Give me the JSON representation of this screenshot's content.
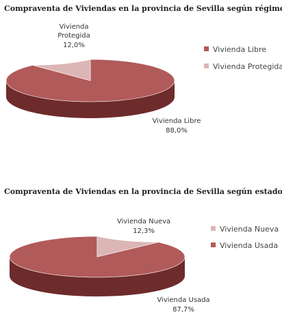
{
  "colors": {
    "primary_top": "#b15a5a",
    "primary_side": "#6e2b2b",
    "secondary_top": "#dcb5b5",
    "secondary_side": "#b08484"
  },
  "chart_data": [
    {
      "type": "pie",
      "title": "Compraventa de Viviendas en la provincia de Sevilla según régimen",
      "legend_position": "right",
      "series": [
        {
          "name": "Vivienda Libre",
          "value": 88.0,
          "label": "88,0%"
        },
        {
          "name": "Vivienda Protegida",
          "value": 12.0,
          "label": "12,0%"
        }
      ]
    },
    {
      "type": "pie",
      "title": "Compraventa de Viviendas en la provincia de Sevilla según estado",
      "legend_position": "right",
      "series": [
        {
          "name": "Vivienda Nueva",
          "value": 12.3,
          "label": "12,3%"
        },
        {
          "name": "Vivienda Usada",
          "value": 87.7,
          "label": "87,7%"
        }
      ]
    }
  ]
}
